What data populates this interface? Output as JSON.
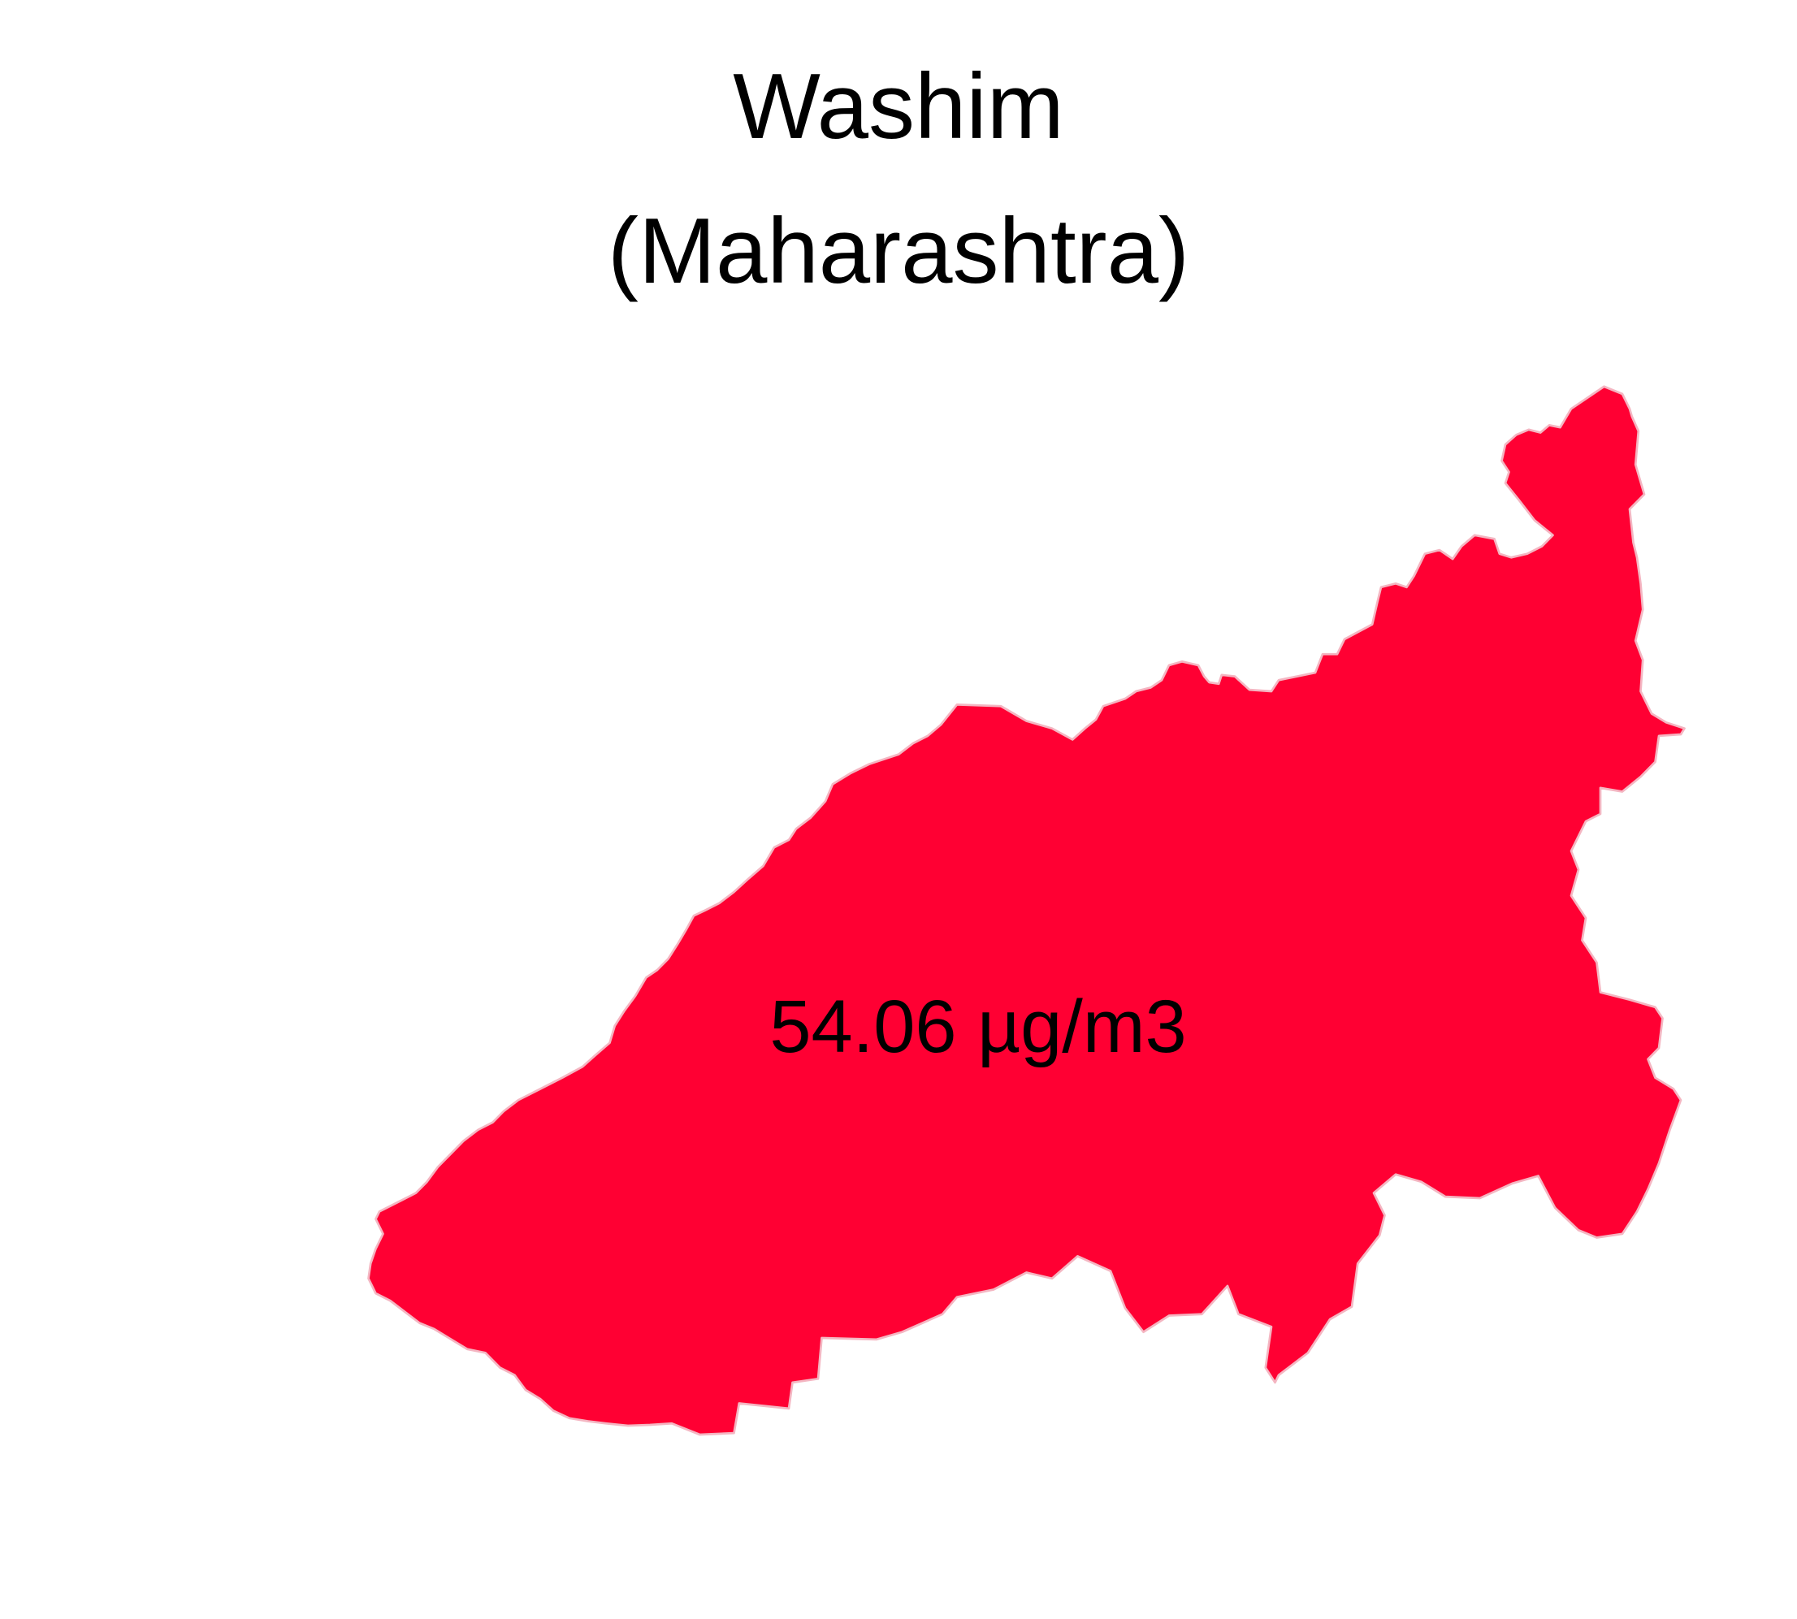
{
  "map": {
    "title": "Washim",
    "subtitle": "(Maharashtra)",
    "value_label": "54.06 µg/m3",
    "fill_color": "#FF0033",
    "border_color": "#F4B6C2",
    "background_color": "#FFFFFF"
  }
}
